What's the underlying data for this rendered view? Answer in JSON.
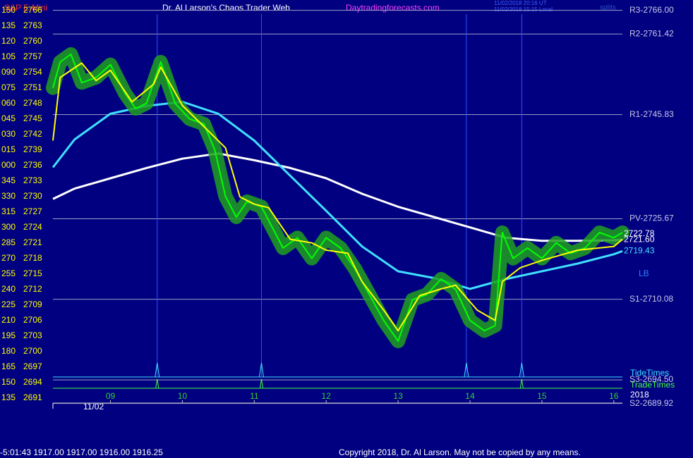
{
  "chart_data": {
    "type": "line",
    "header_left": "S&P E-Mini",
    "title": "Dr. Al Larson's Chaos Trader Web",
    "header_site": "Daytradingforecasts.com",
    "timestamps": [
      "11/02/2018 20:16 UT",
      "11/02/2018 15:15 Local"
    ],
    "splits": "splits",
    "status": "-5:01:43  1917.00 1917.00 1916.00 1916.25",
    "copyright": "Copyright 2018, Dr. Al Larson. May not be copied by any means.",
    "date_label": "11/02",
    "year_label": "2018",
    "xlim": [
      8.2,
      16.12
    ],
    "ylim": [
      2689.6,
      2768
    ],
    "xticks": [
      {
        "value": 9,
        "label": "09"
      },
      10,
      11,
      12,
      13,
      14,
      15,
      16
    ],
    "yticks": [
      2766,
      2763,
      2760,
      2757,
      2754,
      2751,
      2748,
      2745,
      2742,
      2739,
      2736,
      2733,
      2730,
      2727,
      2724,
      2721,
      2718,
      2715,
      2712,
      2709,
      2706,
      2703,
      2700,
      2697,
      2694,
      2691
    ],
    "y_angle_labels": [
      "150",
      "135",
      "120",
      "105",
      "090",
      "075",
      "060",
      "045",
      "030",
      "015",
      "000",
      "345",
      "330",
      "315",
      "300",
      "285",
      "270",
      "255",
      "240",
      "225",
      "210",
      "195",
      "180",
      "165",
      "150",
      "135"
    ],
    "levels": [
      {
        "label": "R3-2766.00",
        "value": 2766.0
      },
      {
        "label": "R2-2761.42",
        "value": 2761.42
      },
      {
        "label": "R1-2745.83",
        "value": 2745.83
      },
      {
        "label": "PV-2725.67",
        "value": 2725.67
      },
      {
        "label": "S1-2710.08",
        "value": 2710.08
      },
      {
        "label": "S3-2694.50",
        "value": 2694.5
      },
      {
        "label": "S2-2689.92",
        "value": 2689.92
      }
    ],
    "price_labels": [
      {
        "label": "2722.78",
        "value": 2722.78,
        "color": "#ffffff"
      },
      {
        "label": "2721.60",
        "value": 2721.6,
        "color": "#ffffff"
      },
      {
        "label": "2719.43",
        "value": 2719.43,
        "color": "#40e0ff"
      }
    ],
    "lb_label": "LB",
    "tide_label": "TideTimes",
    "trade_label": "TradeTimes",
    "tide_times": [
      9.65,
      11.1,
      13.95,
      14.72
    ],
    "trade_times": [
      9.65,
      11.1,
      14.72
    ],
    "series": [
      {
        "color": "#ffffff",
        "width": 3,
        "x": [
          8.2,
          8.5,
          9.0,
          9.5,
          10.0,
          10.5,
          11.0,
          11.5,
          12.0,
          12.5,
          13.0,
          13.5,
          14.0,
          14.5,
          15.0,
          15.5,
          16.0,
          16.12
        ],
        "values": [
          2729.5,
          2731.5,
          2733.5,
          2735.5,
          2737.3,
          2738.3,
          2737.0,
          2735.5,
          2733.5,
          2730.5,
          2728.0,
          2726.0,
          2724.0,
          2722.0,
          2721.4,
          2721.4,
          2721.5,
          2721.6
        ]
      },
      {
        "color": "#40e0ff",
        "width": 3,
        "x": [
          8.2,
          8.5,
          9.0,
          9.5,
          10.0,
          10.5,
          11.0,
          11.5,
          12.0,
          12.5,
          13.0,
          13.5,
          14.0,
          14.5,
          15.0,
          15.5,
          16.0,
          16.12
        ],
        "values": [
          2735.6,
          2741,
          2746,
          2747.5,
          2748.3,
          2746,
          2740.8,
          2734,
          2727.2,
          2720.3,
          2715.5,
          2714.2,
          2712.1,
          2714.0,
          2715.5,
          2717.0,
          2718.8,
          2719.4
        ]
      },
      {
        "color": "#00ff00",
        "width": 2,
        "glow": true,
        "x": [
          8.2,
          8.3,
          8.45,
          8.6,
          8.8,
          9.0,
          9.2,
          9.35,
          9.5,
          9.7,
          9.9,
          10.1,
          10.3,
          10.45,
          10.6,
          10.75,
          10.9,
          11.1,
          11.25,
          11.4,
          11.6,
          11.8,
          12.0,
          12.2,
          12.4,
          12.6,
          12.8,
          13.0,
          13.2,
          13.4,
          13.6,
          13.8,
          14.0,
          14.2,
          14.35,
          14.45,
          14.6,
          14.8,
          15.0,
          15.2,
          15.4,
          15.6,
          15.8,
          16.0,
          16.12
        ],
        "values": [
          2751,
          2756,
          2757.5,
          2752,
          2753,
          2755.5,
          2750,
          2747,
          2748,
          2756,
          2748,
          2745,
          2744,
          2739,
          2730,
          2726,
          2729,
          2728,
          2724,
          2720,
          2722,
          2718,
          2722,
          2720,
          2716,
          2711,
          2706,
          2702,
          2710,
          2711,
          2714,
          2712,
          2706,
          2704,
          2705,
          2723,
          2718,
          2720,
          2718,
          2721,
          2719,
          2720,
          2723,
          2722,
          2723
        ]
      },
      {
        "color": "#ffff00",
        "width": 2,
        "x": [
          8.2,
          8.3,
          8.6,
          8.8,
          9.0,
          9.3,
          9.6,
          9.7,
          10.0,
          10.3,
          10.6,
          10.8,
          11.0,
          11.2,
          11.5,
          11.8,
          12.0,
          12.3,
          12.5,
          12.8,
          13.0,
          13.3,
          13.6,
          13.8,
          14.1,
          14.35,
          14.45,
          14.7,
          15.0,
          15.5,
          16.0,
          16.12
        ],
        "values": [
          2740.8,
          2753,
          2755.8,
          2752.4,
          2754.4,
          2748.3,
          2751.7,
          2755,
          2747.6,
          2743.5,
          2739.4,
          2729.9,
          2728.5,
          2727.8,
          2721.7,
          2721,
          2719.6,
          2719,
          2713.5,
          2708,
          2704,
          2710.8,
          2712.1,
          2712.8,
          2708,
          2706,
          2713.5,
          2716.2,
          2717.6,
          2719.6,
          2720.3,
          2721.7
        ]
      }
    ]
  }
}
